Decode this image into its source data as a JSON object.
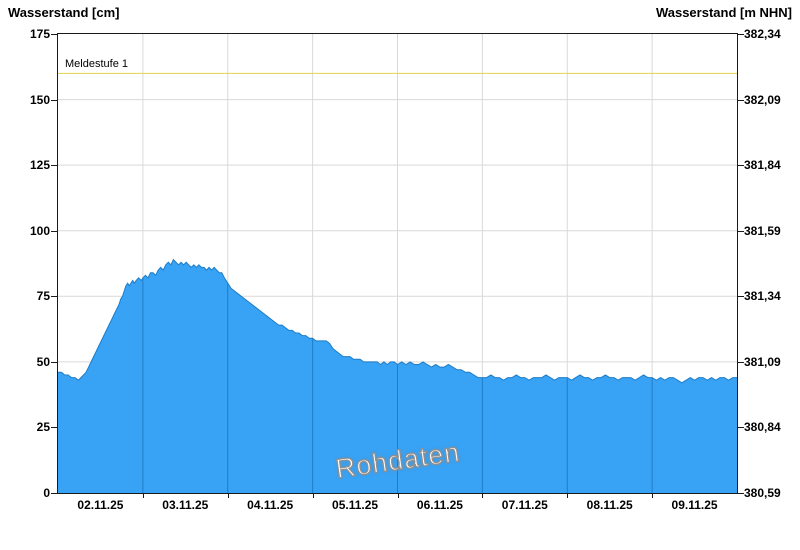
{
  "chart_data": {
    "type": "area",
    "title": "",
    "watermark": "Rohdaten",
    "grid_color": "#D9D9D9",
    "threshold": {
      "label": "Meldestufe 1",
      "value_cm": 160,
      "color": "#E3D24F"
    },
    "y_axis_left": {
      "title": "Wasserstand [cm]",
      "range": [
        0,
        175
      ],
      "ticks": [
        0,
        25,
        50,
        75,
        100,
        125,
        150,
        175
      ]
    },
    "y_axis_right": {
      "title": "Wasserstand [m NHN]",
      "tick_labels": [
        "380,59",
        "380,84",
        "381,09",
        "381,34",
        "381,59",
        "381,84",
        "382,09",
        "382,34"
      ]
    },
    "x_axis": {
      "range_days": [
        0,
        8
      ],
      "day_boundaries": [
        1,
        2,
        3,
        4,
        5,
        6,
        7
      ],
      "labels": [
        "02.11.25",
        "03.11.25",
        "04.11.25",
        "05.11.25",
        "06.11.25",
        "07.11.25",
        "08.11.25",
        "09.11.25"
      ],
      "label_positions_days": [
        0.5,
        1.5,
        2.5,
        3.5,
        4.5,
        5.5,
        6.5,
        7.5
      ]
    },
    "series": [
      {
        "name": "Wasserstand Rohdaten",
        "fill_color": "#38A2F4",
        "edge_color": "#1E7DC8",
        "inner_line_color": "#1E7DC8",
        "points": [
          [
            0.0,
            46
          ],
          [
            0.04,
            46
          ],
          [
            0.08,
            45
          ],
          [
            0.12,
            45
          ],
          [
            0.16,
            44
          ],
          [
            0.2,
            44
          ],
          [
            0.24,
            43
          ],
          [
            0.27,
            44
          ],
          [
            0.3,
            45
          ],
          [
            0.33,
            46
          ],
          [
            0.36,
            48
          ],
          [
            0.39,
            50
          ],
          [
            0.42,
            52
          ],
          [
            0.45,
            54
          ],
          [
            0.48,
            56
          ],
          [
            0.51,
            58
          ],
          [
            0.54,
            60
          ],
          [
            0.57,
            62
          ],
          [
            0.6,
            64
          ],
          [
            0.63,
            66
          ],
          [
            0.66,
            68
          ],
          [
            0.69,
            70
          ],
          [
            0.72,
            72
          ],
          [
            0.74,
            74
          ],
          [
            0.76,
            75
          ],
          [
            0.78,
            77
          ],
          [
            0.8,
            79
          ],
          [
            0.82,
            80
          ],
          [
            0.84,
            79
          ],
          [
            0.86,
            80
          ],
          [
            0.88,
            81
          ],
          [
            0.9,
            80
          ],
          [
            0.92,
            81
          ],
          [
            0.95,
            82
          ],
          [
            0.98,
            81
          ],
          [
            1.0,
            82
          ],
          [
            1.03,
            83
          ],
          [
            1.06,
            82
          ],
          [
            1.09,
            84
          ],
          [
            1.12,
            84
          ],
          [
            1.15,
            83
          ],
          [
            1.18,
            85
          ],
          [
            1.21,
            86
          ],
          [
            1.24,
            85
          ],
          [
            1.27,
            87
          ],
          [
            1.3,
            88
          ],
          [
            1.33,
            87
          ],
          [
            1.36,
            89
          ],
          [
            1.39,
            88
          ],
          [
            1.42,
            87
          ],
          [
            1.45,
            88
          ],
          [
            1.48,
            87
          ],
          [
            1.51,
            88
          ],
          [
            1.54,
            87
          ],
          [
            1.57,
            86
          ],
          [
            1.6,
            87
          ],
          [
            1.63,
            86
          ],
          [
            1.66,
            87
          ],
          [
            1.69,
            86
          ],
          [
            1.72,
            86
          ],
          [
            1.75,
            85
          ],
          [
            1.78,
            86
          ],
          [
            1.81,
            85
          ],
          [
            1.84,
            86
          ],
          [
            1.87,
            85
          ],
          [
            1.9,
            84
          ],
          [
            1.93,
            84
          ],
          [
            1.96,
            82
          ],
          [
            2.0,
            80
          ],
          [
            2.04,
            78
          ],
          [
            2.08,
            77
          ],
          [
            2.12,
            76
          ],
          [
            2.16,
            75
          ],
          [
            2.2,
            74
          ],
          [
            2.24,
            73
          ],
          [
            2.28,
            72
          ],
          [
            2.32,
            71
          ],
          [
            2.36,
            70
          ],
          [
            2.4,
            69
          ],
          [
            2.44,
            68
          ],
          [
            2.48,
            67
          ],
          [
            2.52,
            66
          ],
          [
            2.56,
            65
          ],
          [
            2.6,
            64
          ],
          [
            2.64,
            64
          ],
          [
            2.68,
            63
          ],
          [
            2.72,
            62
          ],
          [
            2.76,
            62
          ],
          [
            2.8,
            61
          ],
          [
            2.84,
            61
          ],
          [
            2.88,
            60
          ],
          [
            2.92,
            60
          ],
          [
            2.96,
            59
          ],
          [
            3.0,
            59
          ],
          [
            3.04,
            58
          ],
          [
            3.08,
            58
          ],
          [
            3.12,
            58
          ],
          [
            3.16,
            58
          ],
          [
            3.2,
            57
          ],
          [
            3.24,
            55
          ],
          [
            3.28,
            54
          ],
          [
            3.32,
            53
          ],
          [
            3.36,
            52
          ],
          [
            3.4,
            52
          ],
          [
            3.44,
            52
          ],
          [
            3.48,
            51
          ],
          [
            3.52,
            51
          ],
          [
            3.56,
            51
          ],
          [
            3.6,
            50
          ],
          [
            3.64,
            50
          ],
          [
            3.68,
            50
          ],
          [
            3.72,
            50
          ],
          [
            3.76,
            50
          ],
          [
            3.8,
            49
          ],
          [
            3.84,
            50
          ],
          [
            3.88,
            49
          ],
          [
            3.92,
            50
          ],
          [
            3.96,
            50
          ],
          [
            4.0,
            49
          ],
          [
            4.05,
            50
          ],
          [
            4.1,
            49
          ],
          [
            4.15,
            50
          ],
          [
            4.2,
            49
          ],
          [
            4.25,
            49
          ],
          [
            4.3,
            50
          ],
          [
            4.35,
            49
          ],
          [
            4.4,
            48
          ],
          [
            4.45,
            49
          ],
          [
            4.5,
            48
          ],
          [
            4.55,
            48
          ],
          [
            4.6,
            49
          ],
          [
            4.65,
            48
          ],
          [
            4.7,
            47
          ],
          [
            4.75,
            47
          ],
          [
            4.8,
            46
          ],
          [
            4.85,
            46
          ],
          [
            4.9,
            45
          ],
          [
            4.95,
            44
          ],
          [
            5.0,
            44
          ],
          [
            5.05,
            44
          ],
          [
            5.1,
            45
          ],
          [
            5.15,
            44
          ],
          [
            5.2,
            44
          ],
          [
            5.25,
            43
          ],
          [
            5.3,
            44
          ],
          [
            5.35,
            44
          ],
          [
            5.4,
            45
          ],
          [
            5.45,
            44
          ],
          [
            5.5,
            44
          ],
          [
            5.55,
            43
          ],
          [
            5.6,
            44
          ],
          [
            5.65,
            44
          ],
          [
            5.7,
            44
          ],
          [
            5.75,
            45
          ],
          [
            5.8,
            44
          ],
          [
            5.85,
            43
          ],
          [
            5.9,
            44
          ],
          [
            5.95,
            44
          ],
          [
            6.0,
            44
          ],
          [
            6.05,
            43
          ],
          [
            6.1,
            44
          ],
          [
            6.15,
            45
          ],
          [
            6.2,
            44
          ],
          [
            6.25,
            44
          ],
          [
            6.3,
            43
          ],
          [
            6.35,
            44
          ],
          [
            6.4,
            44
          ],
          [
            6.45,
            45
          ],
          [
            6.5,
            44
          ],
          [
            6.55,
            44
          ],
          [
            6.6,
            43
          ],
          [
            6.65,
            44
          ],
          [
            6.7,
            44
          ],
          [
            6.75,
            44
          ],
          [
            6.8,
            43
          ],
          [
            6.85,
            44
          ],
          [
            6.9,
            45
          ],
          [
            6.95,
            44
          ],
          [
            7.0,
            44
          ],
          [
            7.05,
            43
          ],
          [
            7.1,
            44
          ],
          [
            7.15,
            43
          ],
          [
            7.2,
            44
          ],
          [
            7.25,
            44
          ],
          [
            7.3,
            43
          ],
          [
            7.35,
            42
          ],
          [
            7.4,
            43
          ],
          [
            7.45,
            44
          ],
          [
            7.5,
            43
          ],
          [
            7.55,
            44
          ],
          [
            7.6,
            44
          ],
          [
            7.65,
            43
          ],
          [
            7.7,
            44
          ],
          [
            7.75,
            43
          ],
          [
            7.8,
            44
          ],
          [
            7.85,
            44
          ],
          [
            7.9,
            43
          ],
          [
            7.95,
            44
          ],
          [
            8.0,
            44
          ]
        ]
      }
    ]
  }
}
